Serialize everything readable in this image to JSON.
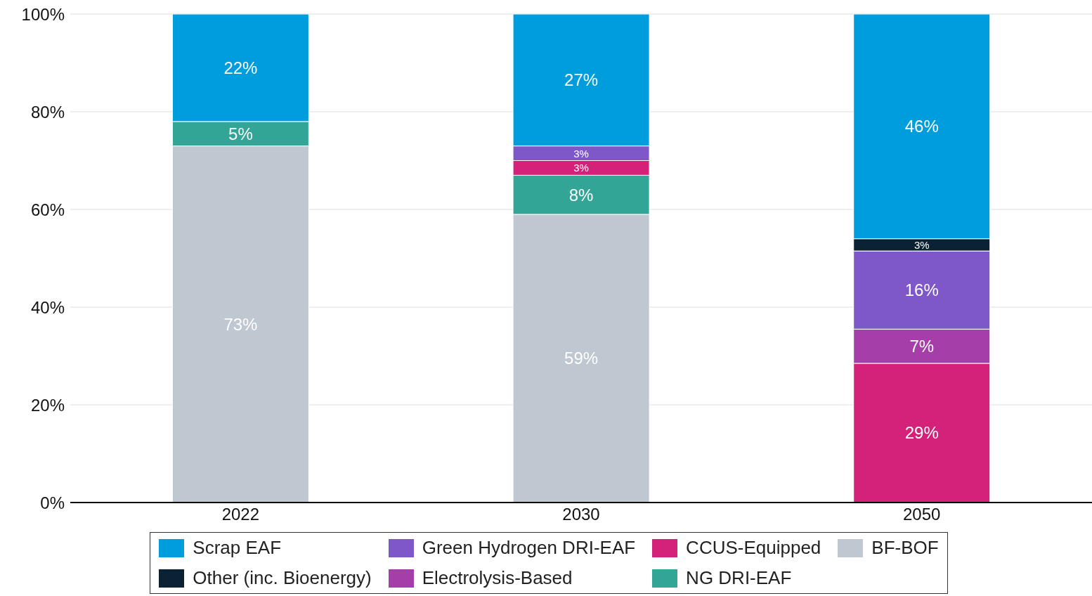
{
  "chart_data": {
    "type": "bar",
    "stacked": true,
    "categories": [
      "2022",
      "2030",
      "2050"
    ],
    "series": [
      {
        "name": "BF-BOF",
        "color": "#bfc7d1",
        "values": [
          73,
          59,
          null
        ],
        "value_labels": [
          "73%",
          "59%",
          null
        ]
      },
      {
        "name": "NG DRI-EAF",
        "color": "#33a597",
        "values": [
          5,
          8,
          null
        ],
        "value_labels": [
          "5%",
          "8%",
          null
        ]
      },
      {
        "name": "CCUS-Equipped",
        "color": "#d4217a",
        "values": [
          null,
          3,
          28.5
        ],
        "value_labels": [
          null,
          "3%",
          "29%"
        ]
      },
      {
        "name": "Electrolysis-Based",
        "color": "#a53ea8",
        "values": [
          null,
          null,
          7
        ],
        "value_labels": [
          null,
          null,
          "7%"
        ]
      },
      {
        "name": "Green Hydrogen DRI-EAF",
        "color": "#7e57c8",
        "values": [
          null,
          3,
          16
        ],
        "value_labels": [
          null,
          "3%",
          "16%"
        ]
      },
      {
        "name": "Other (inc. Bioenergy)",
        "color": "#0a2233",
        "values": [
          null,
          null,
          2.5
        ],
        "value_labels": [
          null,
          null,
          "3%"
        ]
      },
      {
        "name": "Scrap EAF",
        "color": "#009ddc",
        "values": [
          22,
          27,
          46
        ],
        "value_labels": [
          "22%",
          "27%",
          "46%"
        ]
      }
    ],
    "ylim": [
      0,
      100
    ],
    "yticks": [
      {
        "value": 0,
        "label": "0%"
      },
      {
        "value": 20,
        "label": "20%"
      },
      {
        "value": 40,
        "label": "40%"
      },
      {
        "value": 60,
        "label": "60%"
      },
      {
        "value": 80,
        "label": "80%"
      },
      {
        "value": 100,
        "label": "100%"
      }
    ],
    "grid": "y",
    "legend": "bottom"
  }
}
